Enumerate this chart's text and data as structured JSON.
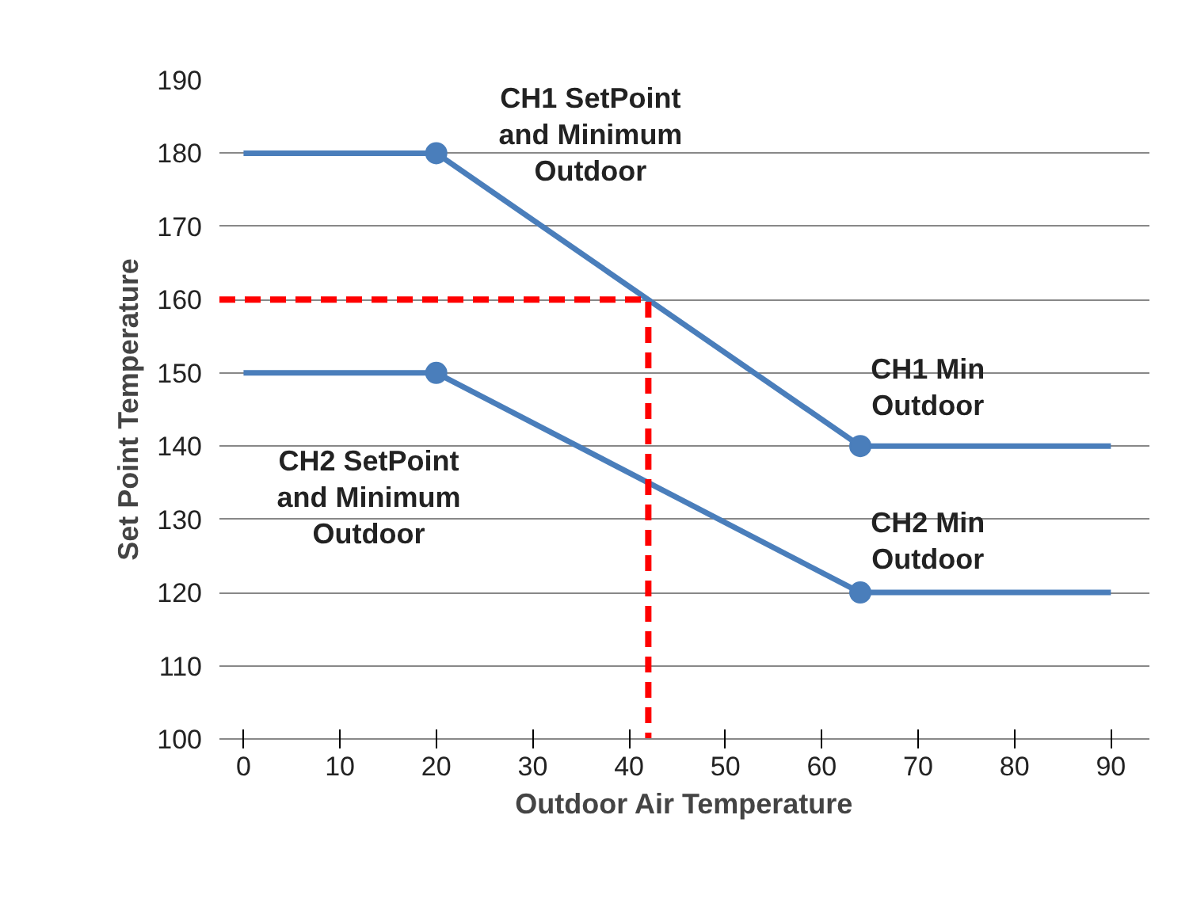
{
  "chart_data": {
    "type": "line",
    "xlabel": "Outdoor Air Temperature",
    "ylabel": "Set Point Temperature",
    "xlim": [
      -2.5,
      94
    ],
    "xticks": [
      0,
      10,
      20,
      30,
      40,
      50,
      60,
      70,
      80,
      90
    ],
    "ylim": [
      100,
      190
    ],
    "yticks": [
      100,
      110,
      120,
      130,
      140,
      150,
      160,
      170,
      180,
      190
    ],
    "grid": "y",
    "marker": "circle",
    "series": [
      {
        "color": "#4a7ebb",
        "x": [
          0,
          20,
          64,
          90
        ],
        "values": [
          180,
          180,
          140,
          140
        ],
        "marker": "none",
        "line_style": "solid"
      },
      {
        "color": "#4a7ebb",
        "x": [
          0,
          20,
          64,
          90
        ],
        "values": [
          150,
          150,
          120,
          120
        ],
        "marker": "none",
        "line_style": "solid"
      },
      {
        "type": "scatter",
        "color": "#4a7ebb",
        "x": [
          20,
          64
        ],
        "values": [
          180,
          140
        ]
      },
      {
        "type": "scatter",
        "color": "#4a7ebb",
        "x": [
          20,
          64
        ],
        "values": [
          150,
          120
        ]
      },
      {
        "color": "#ff0000",
        "x": [
          -2.5,
          42,
          42
        ],
        "values": [
          160,
          160,
          100
        ],
        "marker": "none",
        "line_style": "dashed"
      }
    ],
    "annotations": [
      "CH1 SetPoint\nand Minimum\nOutdoor",
      "CH1 Min\nOutdoor",
      "CH2 SetPoint\nand Minimum\nOutdoor",
      "CH2 Min\nOutdoor"
    ]
  }
}
